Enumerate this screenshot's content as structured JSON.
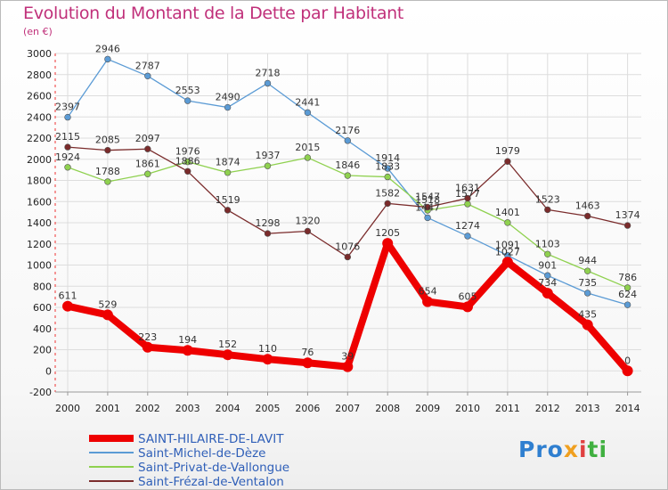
{
  "title": "Evolution du Montant de la Dette par Habitant",
  "unit": "(en €)",
  "logo": {
    "part1": "Pro",
    "part2": "x",
    "part3": "i",
    "part4": "ti"
  },
  "chart_data": {
    "type": "line",
    "title": "Evolution du Montant de la Dette par Habitant",
    "ylabel": "(en €)",
    "xlabel": "",
    "x": [
      "2000",
      "2001",
      "2002",
      "2003",
      "2004",
      "2005",
      "2006",
      "2007",
      "2008",
      "2009",
      "2010",
      "2011",
      "2012",
      "2013",
      "2014"
    ],
    "ylim": [
      -200,
      3000
    ],
    "yticks": [
      -200,
      0,
      200,
      400,
      600,
      800,
      1000,
      1200,
      1400,
      1600,
      1800,
      2000,
      2200,
      2400,
      2600,
      2800,
      3000
    ],
    "grid": true,
    "legend_position": "bottom-left",
    "series": [
      {
        "name": "SAINT-HILAIRE-DE-LAVIT",
        "color": "#ee0000",
        "values": [
          611,
          529,
          223,
          194,
          152,
          110,
          76,
          39,
          1205,
          654,
          605,
          1027,
          734,
          435,
          0
        ]
      },
      {
        "name": "Saint-Michel-de-Dèze",
        "color": "#5b9bd5",
        "values": [
          2397,
          2946,
          2787,
          2553,
          2490,
          2718,
          2441,
          2176,
          1914,
          1447,
          1274,
          1091,
          901,
          735,
          624
        ]
      },
      {
        "name": "Saint-Privat-de-Vallongue",
        "color": "#8fd14f",
        "values": [
          1924,
          1788,
          1861,
          1976,
          1874,
          1937,
          2015,
          1846,
          1833,
          1518,
          1577,
          1401,
          1103,
          944,
          786
        ]
      },
      {
        "name": "Saint-Frézal-de-Ventalon",
        "color": "#7a2b2b",
        "values": [
          2115,
          2085,
          2097,
          1886,
          1519,
          1298,
          1320,
          1076,
          1582,
          1547,
          1631,
          1979,
          1523,
          1463,
          1374
        ]
      }
    ]
  }
}
